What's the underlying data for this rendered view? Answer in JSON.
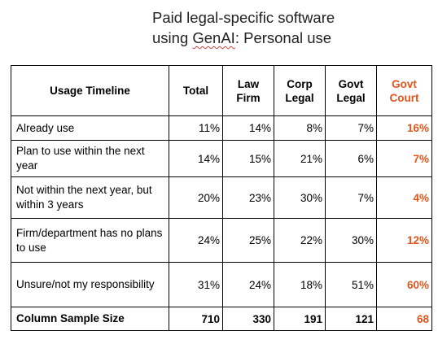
{
  "title": {
    "line1": "Paid legal-specific software",
    "line2_prefix": "using ",
    "line2_flagged": "GenAI",
    "line2_suffix": ": Personal use"
  },
  "table": {
    "headers": {
      "usage": "Usage Timeline",
      "total": "Total",
      "law_l1": "Law",
      "law_l2": "Firm",
      "corp_l1": "Corp",
      "corp_l2": "Legal",
      "govt_l1": "Govt",
      "govt_l2": "Legal",
      "court_l1": "Govt",
      "court_l2": "Court"
    },
    "rows": [
      {
        "label": "Already use",
        "total": "11%",
        "law": "14%",
        "corp": "8%",
        "govt": "7%",
        "court": "16%"
      },
      {
        "label": "Plan to use within the next year",
        "total": "14%",
        "law": "15%",
        "corp": "21%",
        "govt": "6%",
        "court": "7%"
      },
      {
        "label": "Not within the next year, but within 3 years",
        "total": "20%",
        "law": "23%",
        "corp": "30%",
        "govt": "7%",
        "court": "4%"
      },
      {
        "label": "Firm/department has no plans to use",
        "total": "24%",
        "law": "25%",
        "corp": "22%",
        "govt": "30%",
        "court": "12%"
      },
      {
        "label": "Unsure/not my responsibility",
        "total": "31%",
        "law": "24%",
        "corp": "18%",
        "govt": "51%",
        "court": "60%"
      },
      {
        "label": "Column Sample Size",
        "total": "710",
        "law": "330",
        "corp": "191",
        "govt": "121",
        "court": "68"
      }
    ]
  },
  "colors": {
    "accent": "#e0561c"
  }
}
